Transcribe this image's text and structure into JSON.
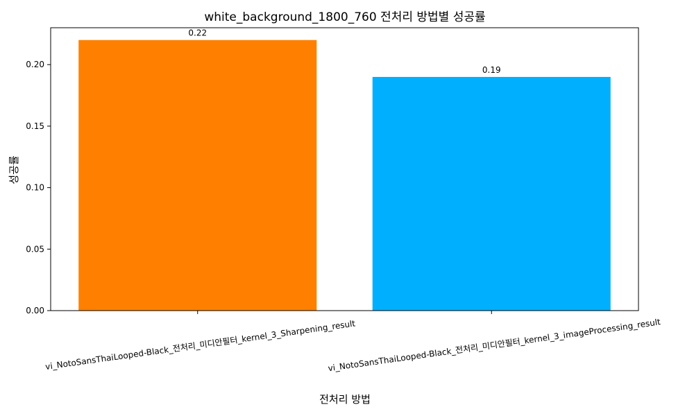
{
  "chart_data": {
    "type": "bar",
    "title": "white_background_1800_760 전처리 방법별 성공률",
    "xlabel": "전처리 방법",
    "ylabel": "성공률",
    "categories": [
      "vi_NotoSansThaiLooped-Black_전처리_미디안필터_kernel_3_Sharpening_result",
      "vi_NotoSansThaiLooped-Black_전처리_미디안필터_kernel_3_imageProcessing_result"
    ],
    "values": [
      0.22,
      0.19
    ],
    "value_labels": [
      "0.22",
      "0.19"
    ],
    "colors": [
      "#ff8000",
      "#00b0ff"
    ],
    "ylim": [
      0,
      0.23
    ],
    "yticks": [
      0.0,
      0.05,
      0.1,
      0.15,
      0.2
    ],
    "ytick_labels": [
      "0.00",
      "0.05",
      "0.10",
      "0.15",
      "0.20"
    ],
    "grid": false,
    "legend": "none"
  }
}
